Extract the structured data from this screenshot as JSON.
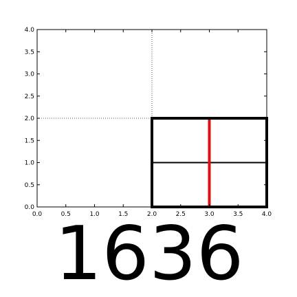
{
  "chart_data": {
    "type": "line",
    "title": "",
    "xlabel": "",
    "ylabel": "",
    "xlim": [
      0.0,
      4.0
    ],
    "ylim": [
      0.0,
      4.0
    ],
    "grid": false,
    "x_ticks": [
      "0.0",
      "0.5",
      "1.0",
      "1.5",
      "2.0",
      "2.5",
      "3.0",
      "3.5",
      "4.0"
    ],
    "y_ticks": [
      "0.0",
      "0.5",
      "1.0",
      "1.5",
      "2.0",
      "2.5",
      "3.0",
      "3.5",
      "4.0"
    ],
    "guides": [
      {
        "orientation": "vertical",
        "x": 2.0,
        "y": [
          2.0,
          4.0
        ],
        "style": "dotted",
        "color": "#555555"
      },
      {
        "orientation": "horizontal",
        "y": 2.0,
        "x": [
          0.0,
          2.0
        ],
        "style": "dotted",
        "color": "#555555"
      }
    ],
    "box": {
      "x": [
        2.0,
        4.0
      ],
      "y": [
        0.0,
        2.0
      ],
      "color": "#000000"
    },
    "inner_lines": [
      {
        "orientation": "horizontal",
        "y": 1.0,
        "x": [
          2.0,
          4.0
        ],
        "color": "#000000"
      },
      {
        "orientation": "vertical",
        "x": 3.0,
        "y": [
          0.0,
          2.0
        ],
        "color": "#dd1111"
      }
    ]
  },
  "caption": "1636"
}
